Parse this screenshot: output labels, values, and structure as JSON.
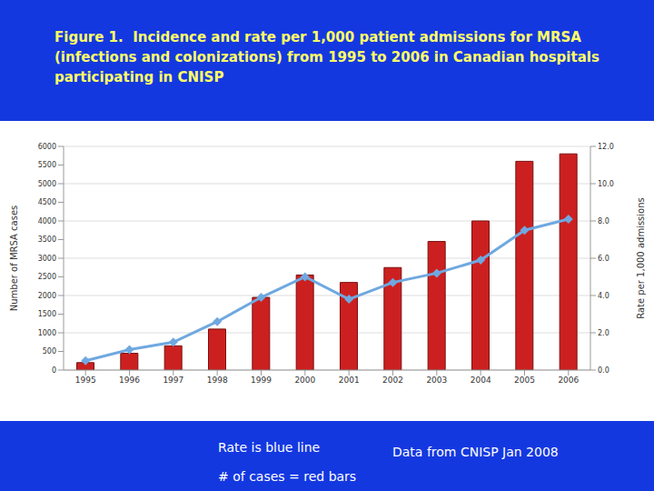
{
  "chart_data": {
    "type": "bar",
    "title": "Figure 1.  Incidence and rate per 1,000 patient admissions for MRSA (infections and colonizations) from 1995 to 2006 in Canadian hospitals participating in CNISP",
    "y_label": "Number of MRSA cases",
    "y2_label": "Rate per 1,000 admissions",
    "categories": [
      "1995",
      "1996",
      "1997",
      "1998",
      "1999",
      "2000",
      "2001",
      "2002",
      "2003",
      "2004",
      "2005",
      "2006"
    ],
    "series": [
      {
        "type": "bar",
        "color": "#cc2020",
        "values": [
          200,
          450,
          650,
          1100,
          1950,
          2550,
          2350,
          2750,
          3450,
          4000,
          5600,
          5800
        ]
      },
      {
        "type": "line",
        "axis": "y2",
        "color": "#6fa8e0",
        "marker": "diamond",
        "values": [
          0.5,
          1.1,
          1.5,
          2.6,
          3.9,
          5.0,
          3.8,
          4.7,
          5.2,
          5.9,
          7.5,
          8.1
        ]
      }
    ],
    "ylim": [
      0,
      6000
    ],
    "yticks": [
      0,
      500,
      1000,
      1500,
      2000,
      2500,
      3000,
      3500,
      4000,
      4500,
      5000,
      5500,
      6000
    ],
    "y2lim": [
      0,
      12
    ],
    "y2ticks": [
      {
        "value": 0,
        "label": "0.0"
      },
      {
        "value": 2,
        "label": "2.0"
      },
      {
        "value": 4,
        "label": "4.0"
      },
      {
        "value": 6,
        "label": "6.0"
      },
      {
        "value": 8,
        "label": "8.0"
      },
      {
        "value": 10,
        "label": "10.0"
      },
      {
        "value": 12,
        "label": "12.0"
      }
    ],
    "grid": true,
    "annotations": [
      "Rate is blue line",
      "# of cases = red bars",
      "Data from CNISP Jan 2008"
    ]
  }
}
